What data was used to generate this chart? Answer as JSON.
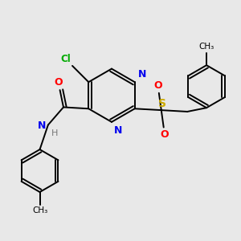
{
  "background_color": "#e8e8e8",
  "atom_colors": {
    "C": "#000000",
    "N": "#0000ee",
    "O": "#ff0000",
    "S": "#ccaa00",
    "Cl": "#00aa00",
    "H": "#777777"
  },
  "figsize": [
    3.0,
    3.0
  ],
  "dpi": 100
}
